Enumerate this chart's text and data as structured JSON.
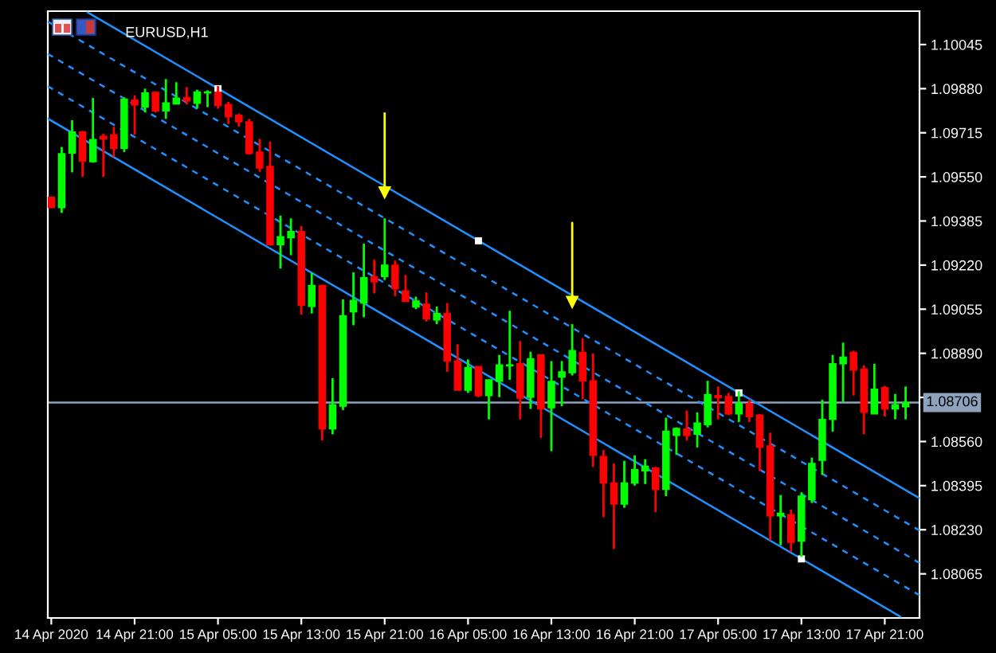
{
  "chart_data": {
    "type": "candlestick",
    "title": "EURUSD,H1",
    "x": [
      "2020-04-14T13:00",
      "2020-04-14T14:00",
      "2020-04-14T15:00",
      "2020-04-14T16:00",
      "2020-04-14T17:00",
      "2020-04-14T18:00",
      "2020-04-14T19:00",
      "2020-04-14T20:00",
      "2020-04-14T21:00",
      "2020-04-14T22:00",
      "2020-04-14T23:00",
      "2020-04-15T00:00",
      "2020-04-15T01:00",
      "2020-04-15T02:00",
      "2020-04-15T03:00",
      "2020-04-15T04:00",
      "2020-04-15T05:00",
      "2020-04-15T06:00",
      "2020-04-15T07:00",
      "2020-04-15T08:00",
      "2020-04-15T09:00",
      "2020-04-15T10:00",
      "2020-04-15T11:00",
      "2020-04-15T12:00",
      "2020-04-15T13:00",
      "2020-04-15T14:00",
      "2020-04-15T15:00",
      "2020-04-15T16:00",
      "2020-04-15T17:00",
      "2020-04-15T18:00",
      "2020-04-15T19:00",
      "2020-04-15T20:00",
      "2020-04-15T21:00",
      "2020-04-15T22:00",
      "2020-04-15T23:00",
      "2020-04-16T00:00",
      "2020-04-16T01:00",
      "2020-04-16T02:00",
      "2020-04-16T03:00",
      "2020-04-16T04:00",
      "2020-04-16T05:00",
      "2020-04-16T06:00",
      "2020-04-16T07:00",
      "2020-04-16T08:00",
      "2020-04-16T09:00",
      "2020-04-16T10:00",
      "2020-04-16T11:00",
      "2020-04-16T12:00",
      "2020-04-16T13:00",
      "2020-04-16T14:00",
      "2020-04-16T15:00",
      "2020-04-16T16:00",
      "2020-04-16T17:00",
      "2020-04-16T18:00",
      "2020-04-16T19:00",
      "2020-04-16T20:00",
      "2020-04-16T21:00",
      "2020-04-16T22:00",
      "2020-04-16T23:00",
      "2020-04-17T00:00",
      "2020-04-17T01:00",
      "2020-04-17T02:00",
      "2020-04-17T03:00",
      "2020-04-17T04:00",
      "2020-04-17T05:00",
      "2020-04-17T06:00",
      "2020-04-17T07:00",
      "2020-04-17T08:00",
      "2020-04-17T09:00",
      "2020-04-17T10:00",
      "2020-04-17T11:00",
      "2020-04-17T12:00",
      "2020-04-17T13:00",
      "2020-04-17T14:00",
      "2020-04-17T15:00",
      "2020-04-17T16:00",
      "2020-04-17T17:00",
      "2020-04-17T18:00",
      "2020-04-17T19:00",
      "2020-04-17T20:00",
      "2020-04-17T21:00",
      "2020-04-17T22:00",
      "2020-04-17T23:00"
    ],
    "ohlc": [
      [
        1.09474,
        1.09474,
        1.09435,
        1.09435
      ],
      [
        1.09435,
        1.09662,
        1.09415,
        1.09637
      ],
      [
        1.09639,
        1.09762,
        1.09567,
        1.09718
      ],
      [
        1.09718,
        1.09722,
        1.0955,
        1.09609
      ],
      [
        1.09607,
        1.09845,
        1.09603,
        1.0969
      ],
      [
        1.09702,
        1.09712,
        1.0955,
        1.09692
      ],
      [
        1.09708,
        1.09738,
        1.09625,
        1.09657
      ],
      [
        1.09657,
        1.09847,
        1.09643,
        1.09841
      ],
      [
        1.09837,
        1.09855,
        1.09708,
        1.09819
      ],
      [
        1.09811,
        1.0988,
        1.09791,
        1.09864
      ],
      [
        1.09866,
        1.0987,
        1.09791,
        1.09797
      ],
      [
        1.09797,
        1.09916,
        1.09767,
        1.09827
      ],
      [
        1.09823,
        1.09904,
        1.09821,
        1.09845
      ],
      [
        1.09847,
        1.09886,
        1.09821,
        1.09835
      ],
      [
        1.09825,
        1.09876,
        1.09807,
        1.09868
      ],
      [
        1.09864,
        1.09874,
        1.09811,
        1.09868
      ],
      [
        1.09866,
        1.0989,
        1.09805,
        1.09817
      ],
      [
        1.09821,
        1.09831,
        1.09748,
        1.09775
      ],
      [
        1.09781,
        1.09787,
        1.09738,
        1.09756
      ],
      [
        1.09756,
        1.09767,
        1.09633,
        1.09637
      ],
      [
        1.09643,
        1.09692,
        1.09569,
        1.09583
      ],
      [
        1.09589,
        1.09682,
        1.09292,
        1.09296
      ],
      [
        1.09296,
        1.09405,
        1.09207,
        1.09326
      ],
      [
        1.09322,
        1.09395,
        1.09257,
        1.09346
      ],
      [
        1.09346,
        1.09366,
        1.09035,
        1.09069
      ],
      [
        1.09065,
        1.09191,
        1.09039,
        1.09144
      ],
      [
        1.09144,
        1.09144,
        1.08564,
        1.08607
      ],
      [
        1.08607,
        1.08797,
        1.08587,
        1.08698
      ],
      [
        1.08692,
        1.09092,
        1.08678,
        1.09031
      ],
      [
        1.09045,
        1.09193,
        1.08995,
        1.09088
      ],
      [
        1.09078,
        1.093,
        1.09025,
        1.09173
      ],
      [
        1.09177,
        1.0924,
        1.09114,
        1.09158
      ],
      [
        1.09177,
        1.09395,
        1.09164,
        1.0922
      ],
      [
        1.0922,
        1.09237,
        1.09104,
        1.09132
      ],
      [
        1.09124,
        1.09183,
        1.09084,
        1.09084
      ],
      [
        1.09063,
        1.09102,
        1.09055,
        1.09086
      ],
      [
        1.09074,
        1.09118,
        1.09009,
        1.09019
      ],
      [
        1.09015,
        1.09065,
        1.08999,
        1.09039
      ],
      [
        1.09039,
        1.09078,
        1.08821,
        1.08861
      ],
      [
        1.08861,
        1.08924,
        1.08752,
        1.08752
      ],
      [
        1.08752,
        1.08867,
        1.08742,
        1.08837
      ],
      [
        1.08841,
        1.08841,
        1.08726,
        1.08732
      ],
      [
        1.08732,
        1.08791,
        1.08643,
        1.08791
      ],
      [
        1.08785,
        1.08884,
        1.08726,
        1.08847
      ],
      [
        1.08843,
        1.09049,
        1.08791,
        1.08847
      ],
      [
        1.08851,
        1.08936,
        1.08643,
        1.08722
      ],
      [
        1.08726,
        1.08896,
        1.08682,
        1.0887
      ],
      [
        1.08884,
        1.08884,
        1.08574,
        1.08682
      ],
      [
        1.08686,
        1.08861,
        1.08524,
        1.08785
      ],
      [
        1.08801,
        1.08861,
        1.08692,
        1.08821
      ],
      [
        1.08817,
        1.08999,
        1.08807,
        1.089
      ],
      [
        1.08894,
        1.08946,
        1.08718,
        1.08787
      ],
      [
        1.08787,
        1.0889,
        1.08465,
        1.08508
      ],
      [
        1.08504,
        1.08528,
        1.08277,
        1.08405
      ],
      [
        1.08405,
        1.08478,
        1.08158,
        1.08326
      ],
      [
        1.08326,
        1.08488,
        1.08312,
        1.08405
      ],
      [
        1.08405,
        1.08508,
        1.08395,
        1.08455
      ],
      [
        1.0845,
        1.08494,
        1.08401,
        1.08468
      ],
      [
        1.08461,
        1.08465,
        1.08296,
        1.08381
      ],
      [
        1.08381,
        1.08649,
        1.08356,
        1.08599
      ],
      [
        1.08583,
        1.08613,
        1.0851,
        1.08609
      ],
      [
        1.08607,
        1.08676,
        1.08564,
        1.08583
      ],
      [
        1.08587,
        1.08669,
        1.08538,
        1.08629
      ],
      [
        1.08623,
        1.08787,
        1.08613,
        1.08736
      ],
      [
        1.08732,
        1.08766,
        1.08643,
        1.08724
      ],
      [
        1.08728,
        1.08742,
        1.08659,
        1.08663
      ],
      [
        1.08663,
        1.08748,
        1.08633,
        1.08702
      ],
      [
        1.08702,
        1.08718,
        1.08633,
        1.08653
      ],
      [
        1.08659,
        1.08663,
        1.08449,
        1.08538
      ],
      [
        1.08544,
        1.08593,
        1.08191,
        1.08282
      ],
      [
        1.08282,
        1.0836,
        1.08172,
        1.08292
      ],
      [
        1.08286,
        1.08306,
        1.08148,
        1.08183
      ],
      [
        1.08187,
        1.0837,
        1.08128,
        1.08356
      ],
      [
        1.08342,
        1.085,
        1.0833,
        1.08478
      ],
      [
        1.0849,
        1.08716,
        1.08435,
        1.08643
      ],
      [
        1.08643,
        1.08884,
        1.08597,
        1.08851
      ],
      [
        1.08851,
        1.0893,
        1.08708,
        1.08876
      ],
      [
        1.08894,
        1.089,
        1.08732,
        1.08827
      ],
      [
        1.08831,
        1.08845,
        1.08587,
        1.08669
      ],
      [
        1.08663,
        1.08851,
        1.08663,
        1.08756
      ],
      [
        1.08762,
        1.08768,
        1.08653,
        1.08682
      ],
      [
        1.08682,
        1.08738,
        1.08643,
        1.08698
      ],
      [
        1.0869,
        1.08766,
        1.08643,
        1.08706
      ]
    ],
    "colors": [
      "#ff0000",
      "#00ff00",
      "#00ff00",
      "#ff0000",
      "#00ff00",
      "#ff0000",
      "#ff0000",
      "#00ff00",
      "#ff0000",
      "#00ff00",
      "#ff0000",
      "#00ff00",
      "#00ff00",
      "#ff0000",
      "#00ff00",
      "#00ff00",
      "#ff0000",
      "#ff0000",
      "#ff0000",
      "#ff0000",
      "#ff0000",
      "#ff0000",
      "#00ff00",
      "#00ff00",
      "#ff0000",
      "#00ff00",
      "#ff0000",
      "#00ff00",
      "#00ff00",
      "#00ff00",
      "#00ff00",
      "#ff0000",
      "#00ff00",
      "#ff0000",
      "#ff0000",
      "#00ff00",
      "#ff0000",
      "#00ff00",
      "#ff0000",
      "#ff0000",
      "#00ff00",
      "#ff0000",
      "#00ff00",
      "#00ff00",
      "#00ff00",
      "#ff0000",
      "#00ff00",
      "#ff0000",
      "#00ff00",
      "#00ff00",
      "#00ff00",
      "#ff0000",
      "#ff0000",
      "#ff0000",
      "#ff0000",
      "#00ff00",
      "#00ff00",
      "#00ff00",
      "#ff0000",
      "#00ff00",
      "#00ff00",
      "#ff0000",
      "#00ff00",
      "#00ff00",
      "#ff0000",
      "#ff0000",
      "#00ff00",
      "#ff0000",
      "#ff0000",
      "#ff0000",
      "#00ff00",
      "#ff0000",
      "#00ff00",
      "#00ff00",
      "#00ff00",
      "#00ff00",
      "#00ff00",
      "#ff0000",
      "#ff0000",
      "#00ff00",
      "#ff0000",
      "#00ff00",
      "#00ff00"
    ],
    "series": [
      {
        "type": "line",
        "x": [
          "2020-04-14T16:30",
          "2020-04-18T00:20"
        ],
        "values": [
          1.10165,
          1.08348
        ],
        "color": "#1e90ff",
        "line_style": "solid"
      },
      {
        "type": "line",
        "x": [
          "2020-04-14T12:40",
          "2020-04-18T00:20"
        ],
        "values": [
          1.10131,
          1.08227
        ],
        "color": "#1e90ff",
        "line_style": "dashed"
      },
      {
        "type": "line",
        "x": [
          "2020-04-14T12:40",
          "2020-04-18T00:20"
        ],
        "values": [
          1.1001,
          1.08106
        ],
        "color": "#1e90ff",
        "line_style": "dashed"
      },
      {
        "type": "line",
        "x": [
          "2020-04-14T12:40",
          "2020-04-18T00:20"
        ],
        "values": [
          1.09889,
          1.07985
        ],
        "color": "#1e90ff",
        "line_style": "dashed"
      },
      {
        "type": "line",
        "x": [
          "2020-04-14T12:40",
          "2020-04-17T22:30"
        ],
        "values": [
          1.09768,
          1.07905
        ],
        "color": "#1e90ff",
        "line_style": "solid"
      },
      {
        "type": "scatter",
        "x": [
          "2020-04-15T05:00",
          "2020-04-16T06:00",
          "2020-04-17T07:00",
          "2020-04-17T13:00"
        ],
        "values": [
          1.0988,
          1.09311,
          1.08742,
          1.08121
        ],
        "color": "#ffffff",
        "marker": "square"
      },
      {
        "type": "scatter",
        "x": [
          "2020-04-15T21:00",
          "2020-04-16T15:00"
        ],
        "values": [
          1.0949,
          1.0908
        ],
        "color": "#ffff00",
        "marker": "triangle"
      }
    ],
    "ref_lines": [
      {
        "axis": "y",
        "value": 1.08706,
        "label": "1.08706",
        "color": "#8ea2bc"
      }
    ],
    "xlim": [
      "2020-04-14T12:40",
      "2020-04-18T00:20"
    ],
    "xticks": [
      {
        "value": "2020-04-14T13:00",
        "label": "14 Apr 2020"
      },
      {
        "value": "2020-04-14T21:00",
        "label": "14 Apr 21:00"
      },
      {
        "value": "2020-04-15T05:00",
        "label": "15 Apr 05:00"
      },
      {
        "value": "2020-04-15T13:00",
        "label": "15 Apr 13:00"
      },
      {
        "value": "2020-04-15T21:00",
        "label": "15 Apr 21:00"
      },
      {
        "value": "2020-04-16T05:00",
        "label": "16 Apr 05:00"
      },
      {
        "value": "2020-04-16T13:00",
        "label": "16 Apr 13:00"
      },
      {
        "value": "2020-04-16T21:00",
        "label": "16 Apr 21:00"
      },
      {
        "value": "2020-04-17T05:00",
        "label": "17 Apr 05:00"
      },
      {
        "value": "2020-04-17T13:00",
        "label": "17 Apr 13:00"
      },
      {
        "value": "2020-04-17T21:00",
        "label": "17 Apr 21:00"
      }
    ],
    "ylim": [
      1.079,
      1.1017
    ],
    "yticks": [
      1.10045,
      {
        "value": 1.0988,
        "label": "1.09880"
      },
      1.09715,
      {
        "value": 1.0955,
        "label": "1.09550"
      },
      1.09385,
      {
        "value": 1.0922,
        "label": "1.09220"
      },
      1.09055,
      {
        "value": 1.0889,
        "label": "1.08890"
      },
      {
        "value": 1.08725,
        "label": null
      },
      {
        "value": 1.0856,
        "label": "1.08560"
      },
      1.08395,
      {
        "value": 1.0823,
        "label": "1.08230"
      },
      1.08065
    ]
  }
}
